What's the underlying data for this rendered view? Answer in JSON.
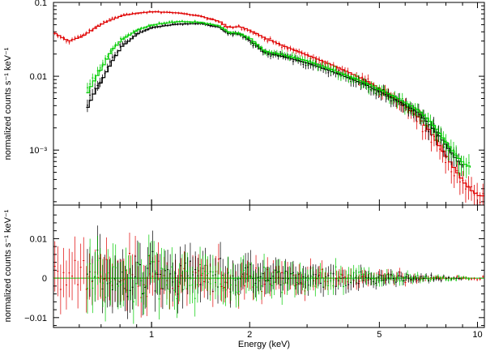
{
  "chart_data": [
    {
      "type": "line",
      "panel": "spectrum",
      "xscale": "log",
      "yscale": "log",
      "xlim": [
        0.5,
        10.5
      ],
      "ylim": [
        0.00018,
        0.1
      ],
      "xlabel": "",
      "ylabel": "normalized counts s⁻¹ keV⁻¹",
      "y_tick_labels": [
        "0.1",
        "0.01",
        "10⁻³"
      ],
      "y_tick_values": [
        0.1,
        0.01,
        0.001
      ],
      "grid": false,
      "series": [
        {
          "color": "#e00000",
          "x": [
            0.5,
            0.55,
            0.6,
            0.7,
            0.8,
            0.9,
            1.0,
            1.2,
            1.4,
            1.6,
            1.7,
            1.85,
            2.0,
            2.2,
            2.5,
            3.0,
            3.5,
            4.0,
            4.5,
            5.0,
            5.5,
            6.0,
            6.5,
            7.0,
            7.5,
            8.0,
            8.5,
            9.0,
            9.5,
            10.0,
            10.5
          ],
          "model": [
            0.038,
            0.03,
            0.034,
            0.052,
            0.066,
            0.072,
            0.075,
            0.072,
            0.065,
            0.055,
            0.046,
            0.047,
            0.041,
            0.033,
            0.026,
            0.019,
            0.0145,
            0.0112,
            0.0087,
            0.0066,
            0.0051,
            0.0038,
            0.0028,
            0.0019,
            0.0012,
            0.00078,
            0.00052,
            0.00036,
            0.00028,
            0.00024,
            0.00024
          ]
        },
        {
          "color": "#000000",
          "x": [
            0.63,
            0.65,
            0.7,
            0.75,
            0.8,
            0.9,
            1.0,
            1.2,
            1.4,
            1.6,
            1.7,
            1.85,
            2.0,
            2.2,
            2.5,
            3.0,
            3.5,
            4.0,
            4.5,
            5.0,
            5.5,
            6.0,
            6.5,
            7.0,
            7.5,
            8.0,
            8.5,
            9.0
          ],
          "model": [
            0.0038,
            0.0052,
            0.0092,
            0.016,
            0.025,
            0.038,
            0.046,
            0.051,
            0.052,
            0.046,
            0.038,
            0.037,
            0.03,
            0.021,
            0.0185,
            0.015,
            0.0118,
            0.0094,
            0.0076,
            0.0061,
            0.0049,
            0.004,
            0.0032,
            0.0023,
            0.0016,
            0.0011,
            0.00075,
            0.00058
          ]
        },
        {
          "color": "#00cc00",
          "x": [
            0.63,
            0.65,
            0.7,
            0.75,
            0.8,
            0.9,
            1.0,
            1.2,
            1.4,
            1.6,
            1.7,
            1.85,
            2.0,
            2.2,
            2.5,
            3.0,
            3.5,
            4.0,
            4.5,
            5.0,
            5.5,
            6.0,
            6.5,
            7.0,
            7.5,
            8.0,
            8.5,
            9.0,
            9.5
          ],
          "model": [
            0.006,
            0.0078,
            0.0135,
            0.023,
            0.031,
            0.043,
            0.05,
            0.055,
            0.054,
            0.048,
            0.04,
            0.038,
            0.032,
            0.022,
            0.0195,
            0.016,
            0.0125,
            0.01,
            0.0081,
            0.0065,
            0.0053,
            0.0043,
            0.0035,
            0.0026,
            0.0018,
            0.0012,
            0.00085,
            0.00065,
            0.00058
          ]
        }
      ]
    },
    {
      "type": "scatter",
      "panel": "residuals",
      "xscale": "log",
      "xlim": [
        0.5,
        10.5
      ],
      "ylim": [
        -0.0125,
        0.0185
      ],
      "xlabel": "Energy (keV)",
      "ylabel": "normalized counts s⁻¹ keV⁻¹",
      "x_tick_labels": [
        "1",
        "2",
        "5",
        "10"
      ],
      "x_tick_values": [
        1,
        2,
        5,
        10
      ],
      "y_tick_labels": [
        "0.01",
        "0",
        "−0.01"
      ],
      "y_tick_values": [
        0.01,
        0,
        -0.01
      ],
      "zero_line": 0,
      "grid": false
    }
  ]
}
